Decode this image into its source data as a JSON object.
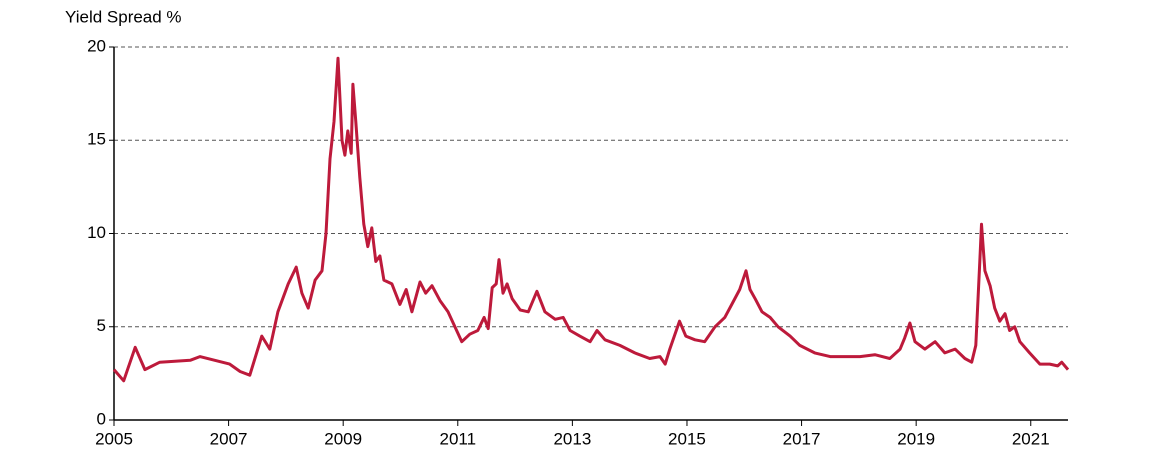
{
  "chart_data": {
    "type": "line",
    "y_label": "Yield Spread %",
    "series": [
      {
        "name": "Yield Spread",
        "color": "#bd1a3b",
        "x": [
          2005.0,
          2005.17,
          2005.37,
          2005.54,
          2005.8,
          2006.33,
          2006.5,
          2007.02,
          2007.2,
          2007.37,
          2007.51,
          2007.58,
          2007.72,
          2007.86,
          2008.04,
          2008.18,
          2008.28,
          2008.39,
          2008.51,
          2008.63,
          2008.7,
          2008.77,
          2008.84,
          2008.91,
          2008.98,
          2009.03,
          2009.08,
          2009.14,
          2009.17,
          2009.22,
          2009.29,
          2009.36,
          2009.43,
          2009.5,
          2009.57,
          2009.64,
          2009.71,
          2009.85,
          2009.99,
          2010.1,
          2010.2,
          2010.34,
          2010.44,
          2010.55,
          2010.69,
          2010.83,
          2010.95,
          2011.07,
          2011.21,
          2011.35,
          2011.46,
          2011.53,
          2011.6,
          2011.67,
          2011.72,
          2011.79,
          2011.86,
          2011.95,
          2012.09,
          2012.23,
          2012.38,
          2012.52,
          2012.7,
          2012.84,
          2012.96,
          2013.13,
          2013.31,
          2013.43,
          2013.57,
          2013.83,
          2014.09,
          2014.35,
          2014.53,
          2014.62,
          2014.7,
          2014.87,
          2014.98,
          2015.14,
          2015.31,
          2015.49,
          2015.66,
          2015.8,
          2015.92,
          2016.03,
          2016.1,
          2016.19,
          2016.31,
          2016.45,
          2016.59,
          2016.8,
          2016.97,
          2017.23,
          2017.5,
          2017.76,
          2018.02,
          2018.28,
          2018.54,
          2018.72,
          2018.8,
          2018.89,
          2018.98,
          2019.15,
          2019.33,
          2019.5,
          2019.68,
          2019.85,
          2019.97,
          2020.04,
          2020.11,
          2020.14,
          2020.2,
          2020.29,
          2020.37,
          2020.46,
          2020.55,
          2020.63,
          2020.72,
          2020.81,
          2020.98,
          2021.16,
          2021.33,
          2021.47,
          2021.54,
          2021.65
        ],
        "values": [
          2.7,
          2.1,
          3.9,
          2.7,
          3.1,
          3.2,
          3.4,
          3.0,
          2.6,
          2.4,
          3.8,
          4.5,
          3.8,
          5.8,
          7.3,
          8.2,
          6.8,
          6.0,
          7.5,
          8.0,
          10.0,
          14.0,
          16.0,
          19.4,
          15.0,
          14.2,
          15.5,
          14.3,
          18.0,
          16.0,
          13.0,
          10.5,
          9.3,
          10.3,
          8.5,
          8.8,
          7.5,
          7.3,
          6.2,
          7.0,
          5.8,
          7.4,
          6.8,
          7.2,
          6.4,
          5.8,
          5.0,
          4.2,
          4.6,
          4.8,
          5.5,
          4.9,
          7.1,
          7.3,
          8.6,
          6.8,
          7.3,
          6.5,
          5.9,
          5.8,
          6.9,
          5.8,
          5.4,
          5.5,
          4.8,
          4.5,
          4.2,
          4.8,
          4.3,
          4.0,
          3.6,
          3.3,
          3.4,
          3.0,
          3.8,
          5.3,
          4.5,
          4.3,
          4.2,
          5.0,
          5.5,
          6.3,
          7.0,
          8.0,
          7.0,
          6.5,
          5.8,
          5.5,
          5.0,
          4.5,
          4.0,
          3.6,
          3.4,
          3.4,
          3.4,
          3.5,
          3.3,
          3.8,
          4.4,
          5.2,
          4.2,
          3.8,
          4.2,
          3.6,
          3.8,
          3.3,
          3.1,
          4.0,
          8.5,
          10.5,
          8.0,
          7.2,
          6.0,
          5.3,
          5.7,
          4.8,
          5.0,
          4.2,
          3.6,
          3.0,
          3.0,
          2.9,
          3.1,
          2.7
        ]
      }
    ],
    "xlim": [
      2005,
      2021.65
    ],
    "xticks": [
      2005,
      2007,
      2009,
      2011,
      2013,
      2015,
      2017,
      2019,
      2021
    ],
    "ylim": [
      0,
      20
    ],
    "yticks": [
      0,
      5,
      10,
      15,
      20
    ],
    "grid": true
  }
}
